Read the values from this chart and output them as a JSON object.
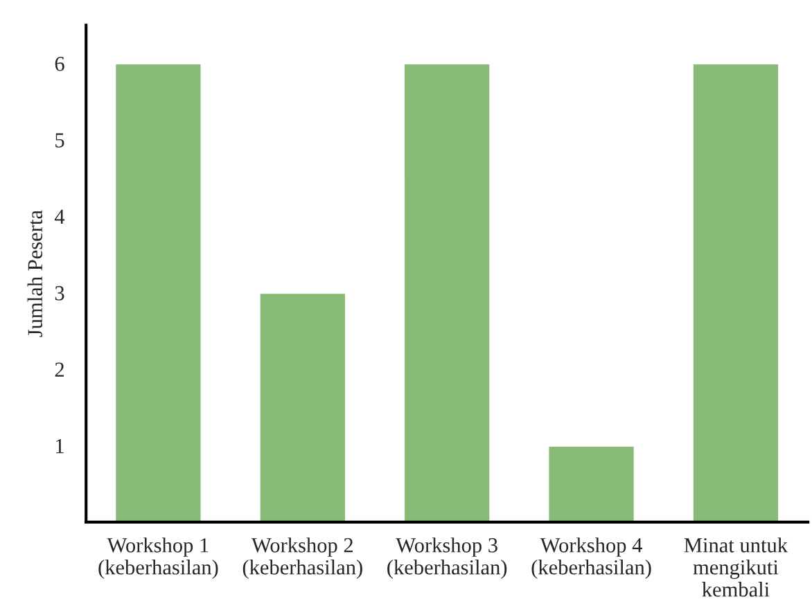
{
  "chart_data": {
    "type": "bar",
    "ylabel": "Jumlah Peserta",
    "categories": [
      "Workshop 1\n(keberhasilan)",
      "Workshop 2\n(keberhasilan)",
      "Workshop 3\n(keberhasilan)",
      "Workshop 4\n(keberhasilan)",
      "Minat untuk\nmengikuti\nkembali"
    ],
    "values": [
      6,
      3,
      6,
      1,
      6
    ],
    "color": "#88bb77",
    "ylim": [
      0,
      6.5
    ],
    "yticks": [
      1,
      2,
      3,
      4,
      5,
      6
    ],
    "grid": false,
    "legend": false
  }
}
